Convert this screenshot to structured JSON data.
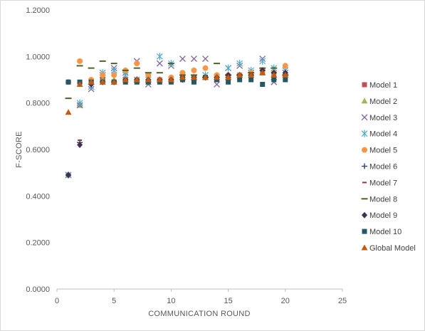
{
  "chart_data": {
    "type": "scatter",
    "title": "",
    "xlabel": "COMMUNICATION ROUND",
    "ylabel": "F-SCORE",
    "xlim": [
      0,
      25
    ],
    "ylim": [
      0,
      1.2
    ],
    "xticks": [
      0,
      5,
      10,
      15,
      20,
      25
    ],
    "yticks": [
      0,
      0.2,
      0.4,
      0.6,
      0.8,
      1.0,
      1.2
    ],
    "xtick_labels": [
      "0",
      "5",
      "10",
      "15",
      "20",
      "25"
    ],
    "ytick_labels": [
      "0.0000",
      "0.2000",
      "0.4000",
      "0.6000",
      "0.8000",
      "1.0000",
      "1.2000"
    ],
    "grid": false,
    "legend_position": "right",
    "series": [
      {
        "name": "Model 1",
        "marker": "square",
        "color": "#C0504D",
        "x": [
          1,
          2,
          3,
          4,
          5,
          6,
          7,
          8,
          9,
          10,
          11,
          12,
          13,
          14,
          15,
          16,
          17,
          18,
          19,
          20
        ],
        "y": [
          0.49,
          0.79,
          0.89,
          0.9,
          0.89,
          0.9,
          0.9,
          0.89,
          0.9,
          0.9,
          0.91,
          0.91,
          0.91,
          0.91,
          0.91,
          0.92,
          0.92,
          0.93,
          0.92,
          0.92
        ]
      },
      {
        "name": "Model 2",
        "marker": "triangle",
        "color": "#9BBB59",
        "x": [
          1,
          2,
          3,
          4,
          5,
          6,
          7,
          8,
          9,
          10,
          11,
          12,
          13,
          14,
          15,
          16,
          17,
          18,
          19,
          20
        ],
        "y": [
          0.49,
          0.79,
          0.89,
          0.9,
          0.9,
          0.9,
          0.9,
          0.89,
          0.9,
          0.9,
          0.91,
          0.91,
          0.91,
          0.92,
          0.91,
          0.92,
          0.92,
          0.93,
          0.92,
          0.93
        ]
      },
      {
        "name": "Model 3",
        "marker": "x",
        "color": "#8064A2",
        "x": [
          1,
          2,
          3,
          4,
          5,
          6,
          7,
          8,
          9,
          10,
          11,
          12,
          13,
          14,
          15,
          16,
          17,
          18,
          19,
          20
        ],
        "y": [
          0.49,
          0.79,
          0.86,
          0.92,
          0.95,
          0.93,
          0.98,
          0.88,
          0.97,
          0.96,
          0.99,
          0.99,
          0.99,
          0.88,
          0.95,
          0.96,
          0.93,
          0.99,
          0.89,
          0.93
        ]
      },
      {
        "name": "Model 4",
        "marker": "asterisk",
        "color": "#4BACC6",
        "x": [
          1,
          2,
          3,
          4,
          5,
          6,
          7,
          8,
          9,
          10,
          11,
          12,
          13,
          14,
          15,
          16,
          17,
          18,
          19,
          20
        ],
        "y": [
          0.49,
          0.8,
          0.87,
          0.93,
          0.94,
          0.92,
          0.9,
          0.9,
          1.0,
          0.97,
          0.92,
          0.91,
          0.92,
          0.91,
          0.95,
          0.97,
          0.94,
          0.98,
          0.95,
          0.94
        ]
      },
      {
        "name": "Model 5",
        "marker": "circle",
        "color": "#F79646",
        "x": [
          1,
          2,
          3,
          4,
          5,
          6,
          7,
          8,
          9,
          10,
          11,
          12,
          13,
          14,
          15,
          16,
          17,
          18,
          19,
          20
        ],
        "y": [
          0.89,
          0.98,
          0.9,
          0.92,
          0.92,
          0.94,
          0.97,
          0.92,
          0.9,
          0.91,
          0.93,
          0.94,
          0.95,
          0.92,
          0.92,
          0.92,
          0.93,
          0.94,
          0.93,
          0.96
        ]
      },
      {
        "name": "Model 6",
        "marker": "plus",
        "color": "#1F3864",
        "x": [
          1,
          2,
          3,
          4,
          5,
          6,
          7,
          8,
          9,
          10,
          11,
          12,
          13,
          14,
          15,
          16,
          17,
          18,
          19,
          20
        ],
        "y": [
          0.49,
          0.63,
          0.88,
          0.89,
          0.89,
          0.9,
          0.9,
          0.9,
          0.9,
          0.9,
          0.9,
          0.91,
          0.91,
          0.91,
          0.91,
          0.92,
          0.92,
          0.94,
          0.93,
          0.92
        ]
      },
      {
        "name": "Model 7",
        "marker": "dash",
        "color": "#943634",
        "x": [
          1,
          2,
          3,
          4,
          5,
          6,
          7,
          8,
          9,
          10,
          11,
          12,
          13,
          14,
          15,
          16,
          17,
          18,
          19,
          20
        ],
        "y": [
          0.49,
          0.64,
          0.88,
          0.89,
          0.89,
          0.89,
          0.9,
          0.9,
          0.9,
          0.9,
          0.91,
          0.91,
          0.91,
          0.91,
          0.91,
          0.92,
          0.92,
          0.94,
          0.93,
          0.92
        ]
      },
      {
        "name": "Model 8",
        "marker": "longdash",
        "color": "#4F6228",
        "x": [
          1,
          2,
          3,
          4,
          5,
          6,
          7,
          8,
          9,
          10,
          11,
          12,
          13,
          14,
          15,
          16,
          17,
          18,
          19,
          20
        ],
        "y": [
          0.82,
          0.96,
          0.95,
          0.98,
          0.97,
          0.94,
          0.95,
          0.93,
          0.93,
          0.97,
          0.92,
          0.92,
          0.91,
          0.97,
          0.92,
          0.92,
          0.93,
          0.95,
          0.95,
          0.92
        ]
      },
      {
        "name": "Model 9",
        "marker": "diamond",
        "color": "#403152",
        "x": [
          1,
          2,
          3,
          4,
          5,
          6,
          7,
          8,
          9,
          10,
          11,
          12,
          13,
          14,
          15,
          16,
          17,
          18,
          19,
          20
        ],
        "y": [
          0.49,
          0.62,
          0.88,
          0.89,
          0.89,
          0.9,
          0.9,
          0.9,
          0.9,
          0.9,
          0.91,
          0.91,
          0.91,
          0.91,
          0.92,
          0.92,
          0.92,
          0.94,
          0.93,
          0.93
        ]
      },
      {
        "name": "Model 10",
        "marker": "square",
        "color": "#215968",
        "x": [
          1,
          2,
          3,
          4,
          5,
          6,
          7,
          8,
          9,
          10,
          11,
          12,
          13,
          14,
          15,
          16,
          17,
          18,
          19,
          20
        ],
        "y": [
          0.89,
          0.89,
          0.89,
          0.89,
          0.89,
          0.89,
          0.89,
          0.89,
          0.89,
          0.89,
          0.9,
          0.89,
          0.91,
          0.9,
          0.89,
          0.9,
          0.9,
          0.88,
          0.9,
          0.9
        ]
      },
      {
        "name": "Global Model",
        "marker": "triangle",
        "color": "#C55A11",
        "x": [
          1,
          2,
          3,
          4,
          5,
          6,
          7,
          8,
          9,
          10,
          11,
          12,
          13,
          14,
          15,
          16,
          17,
          18,
          19,
          20
        ],
        "y": [
          0.76,
          0.88,
          0.89,
          0.89,
          0.89,
          0.9,
          0.9,
          0.9,
          0.9,
          0.9,
          0.91,
          0.91,
          0.91,
          0.91,
          0.91,
          0.92,
          0.92,
          0.93,
          0.92,
          0.92
        ]
      }
    ]
  }
}
